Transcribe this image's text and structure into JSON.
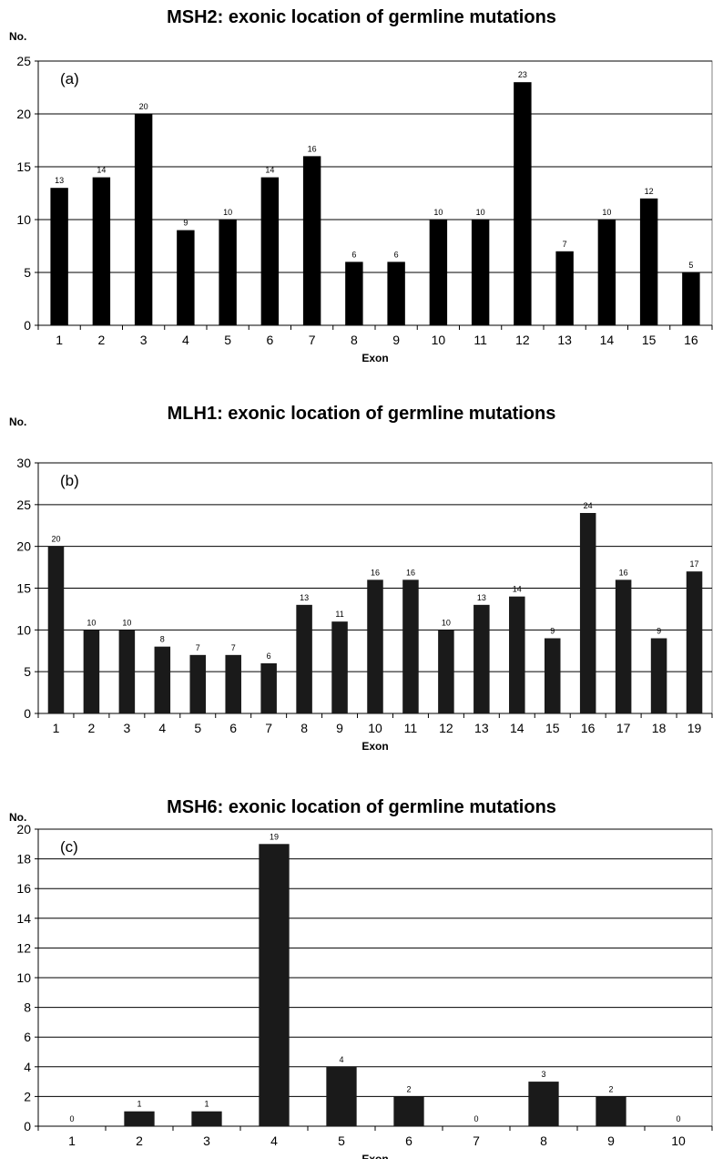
{
  "chart_data": [
    {
      "type": "bar",
      "title": "MSH2: exonic location of germline mutations",
      "panel_label": "(a)",
      "ylabel": "No.",
      "xlabel": "Exon",
      "categories": [
        "1",
        "2",
        "3",
        "4",
        "5",
        "6",
        "7",
        "8",
        "9",
        "10",
        "11",
        "12",
        "13",
        "14",
        "15",
        "16"
      ],
      "values": [
        13,
        14,
        20,
        9,
        10,
        14,
        16,
        6,
        6,
        10,
        10,
        23,
        7,
        10,
        12,
        5
      ],
      "ylim": [
        0,
        25
      ],
      "yticks": [
        0,
        5,
        10,
        15,
        20,
        25
      ],
      "grid": true,
      "bar_color": "#000000"
    },
    {
      "type": "bar",
      "title": "MLH1: exonic location of germline mutations",
      "panel_label": "(b)",
      "ylabel": "No.",
      "xlabel": "Exon",
      "categories": [
        "1",
        "2",
        "3",
        "4",
        "5",
        "6",
        "7",
        "8",
        "9",
        "10",
        "11",
        "12",
        "13",
        "14",
        "15",
        "16",
        "17",
        "18",
        "19"
      ],
      "values": [
        20,
        10,
        10,
        8,
        7,
        7,
        6,
        13,
        11,
        16,
        16,
        10,
        13,
        14,
        9,
        24,
        16,
        9,
        17
      ],
      "ylim": [
        0,
        30
      ],
      "yticks": [
        0,
        5,
        10,
        15,
        20,
        25,
        30
      ],
      "grid": true,
      "bar_color": "#1a1a1a"
    },
    {
      "type": "bar",
      "title": "MSH6: exonic location of germline mutations",
      "panel_label": "(c)",
      "ylabel": "No.",
      "xlabel": "Exon",
      "categories": [
        "1",
        "2",
        "3",
        "4",
        "5",
        "6",
        "7",
        "8",
        "9",
        "10"
      ],
      "values": [
        0,
        1,
        1,
        19,
        4,
        2,
        0,
        3,
        2,
        0
      ],
      "ylim": [
        0,
        20
      ],
      "yticks": [
        0,
        2,
        4,
        6,
        8,
        10,
        12,
        14,
        16,
        18,
        20
      ],
      "grid": true,
      "bar_color": "#1a1a1a"
    }
  ]
}
